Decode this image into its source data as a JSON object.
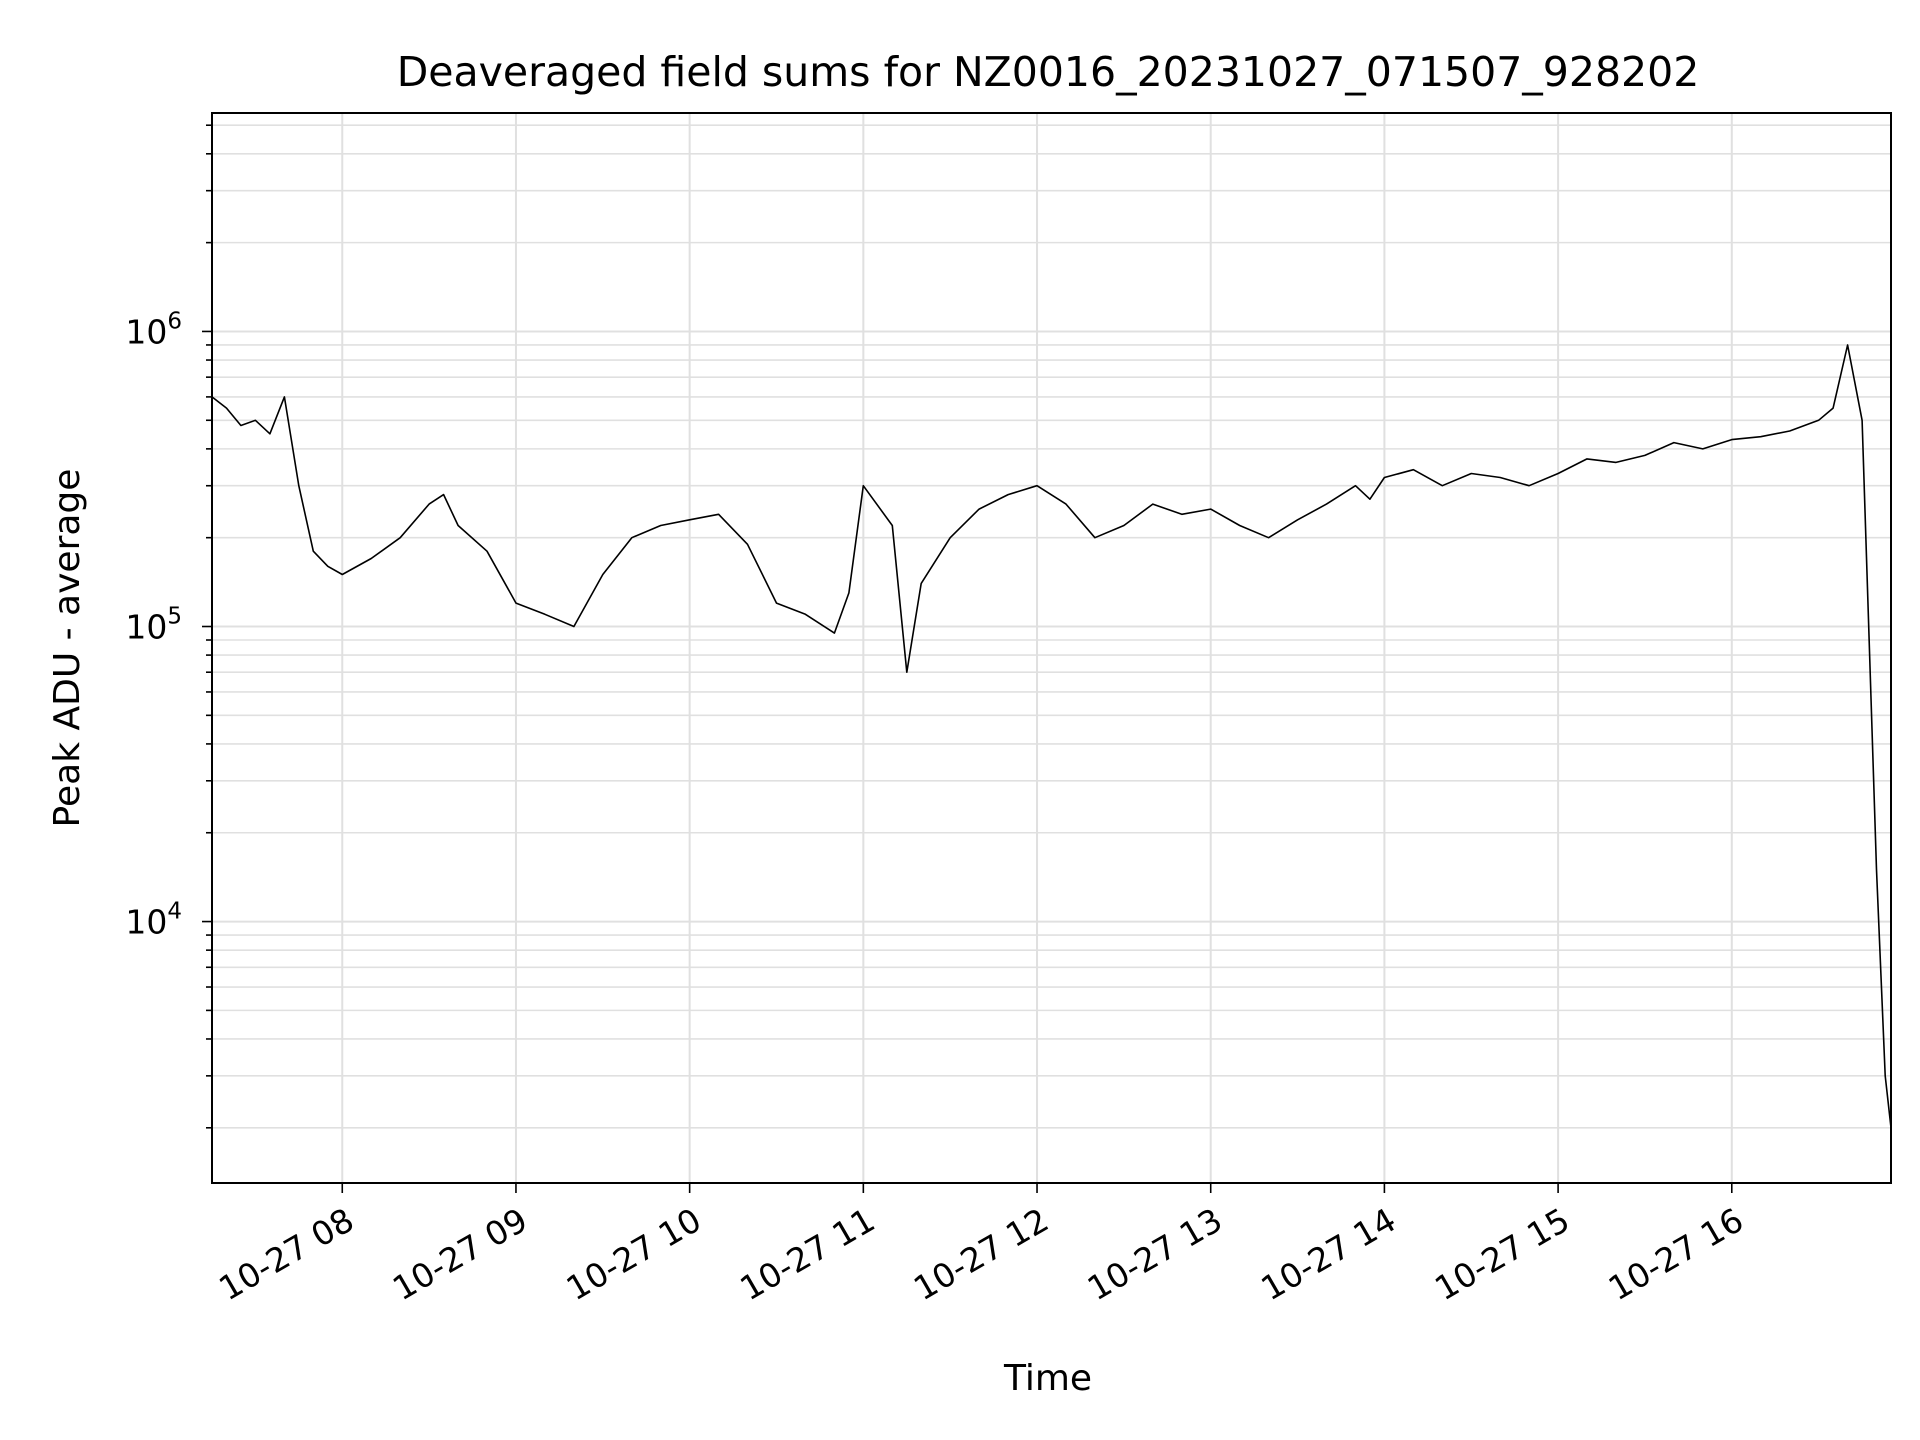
{
  "chart_data": {
    "type": "line",
    "title": "Deaveraged field sums for NZ0016_20231027_071507_928202",
    "xlabel": "Time",
    "ylabel": "Peak ADU - average",
    "y_scale": "log",
    "grid": true,
    "legend": "none",
    "line_color": "#000000",
    "grid_color": "#e0e0e0",
    "xlim": [
      "2023-10-27T07:15",
      "2023-10-27T16:55"
    ],
    "ylim": [
      1300,
      5500000
    ],
    "x_ticks": [
      {
        "t": "2023-10-27T08:00",
        "label": "10-27 08"
      },
      {
        "t": "2023-10-27T09:00",
        "label": "10-27 09"
      },
      {
        "t": "2023-10-27T10:00",
        "label": "10-27 10"
      },
      {
        "t": "2023-10-27T11:00",
        "label": "10-27 11"
      },
      {
        "t": "2023-10-27T12:00",
        "label": "10-27 12"
      },
      {
        "t": "2023-10-27T13:00",
        "label": "10-27 13"
      },
      {
        "t": "2023-10-27T14:00",
        "label": "10-27 14"
      },
      {
        "t": "2023-10-27T15:00",
        "label": "10-27 15"
      },
      {
        "t": "2023-10-27T16:00",
        "label": "10-27 16"
      }
    ],
    "y_ticks": [
      {
        "value": 10000,
        "label": "10",
        "exp": "4"
      },
      {
        "value": 100000,
        "label": "10",
        "exp": "5"
      },
      {
        "value": 1000000,
        "label": "10",
        "exp": "6"
      }
    ],
    "series": [
      {
        "x": [
          "2023-10-27T07:15",
          "2023-10-27T07:20",
          "2023-10-27T07:25",
          "2023-10-27T07:30",
          "2023-10-27T07:35",
          "2023-10-27T07:40",
          "2023-10-27T07:45",
          "2023-10-27T07:50",
          "2023-10-27T07:55",
          "2023-10-27T08:00",
          "2023-10-27T08:10",
          "2023-10-27T08:20",
          "2023-10-27T08:30",
          "2023-10-27T08:35",
          "2023-10-27T08:40",
          "2023-10-27T08:50",
          "2023-10-27T09:00",
          "2023-10-27T09:10",
          "2023-10-27T09:20",
          "2023-10-27T09:30",
          "2023-10-27T09:40",
          "2023-10-27T09:50",
          "2023-10-27T10:00",
          "2023-10-27T10:10",
          "2023-10-27T10:20",
          "2023-10-27T10:30",
          "2023-10-27T10:40",
          "2023-10-27T10:50",
          "2023-10-27T10:55",
          "2023-10-27T11:00",
          "2023-10-27T11:10",
          "2023-10-27T11:15",
          "2023-10-27T11:20",
          "2023-10-27T11:30",
          "2023-10-27T11:40",
          "2023-10-27T11:50",
          "2023-10-27T12:00",
          "2023-10-27T12:10",
          "2023-10-27T12:20",
          "2023-10-27T12:30",
          "2023-10-27T12:40",
          "2023-10-27T12:50",
          "2023-10-27T13:00",
          "2023-10-27T13:10",
          "2023-10-27T13:20",
          "2023-10-27T13:30",
          "2023-10-27T13:40",
          "2023-10-27T13:50",
          "2023-10-27T13:55",
          "2023-10-27T14:00",
          "2023-10-27T14:10",
          "2023-10-27T14:20",
          "2023-10-27T14:30",
          "2023-10-27T14:40",
          "2023-10-27T14:50",
          "2023-10-27T15:00",
          "2023-10-27T15:10",
          "2023-10-27T15:20",
          "2023-10-27T15:30",
          "2023-10-27T15:40",
          "2023-10-27T15:50",
          "2023-10-27T16:00",
          "2023-10-27T16:10",
          "2023-10-27T16:20",
          "2023-10-27T16:30",
          "2023-10-27T16:35",
          "2023-10-27T16:40",
          "2023-10-27T16:45",
          "2023-10-27T16:50",
          "2023-10-27T16:53",
          "2023-10-27T16:55"
        ],
        "y": [
          600000,
          550000,
          480000,
          500000,
          450000,
          600000,
          300000,
          180000,
          160000,
          150000,
          170000,
          200000,
          260000,
          280000,
          220000,
          180000,
          120000,
          110000,
          100000,
          150000,
          200000,
          220000,
          230000,
          240000,
          190000,
          120000,
          110000,
          95000,
          130000,
          300000,
          220000,
          70000,
          140000,
          200000,
          250000,
          280000,
          300000,
          260000,
          200000,
          220000,
          260000,
          240000,
          250000,
          220000,
          200000,
          230000,
          260000,
          300000,
          270000,
          320000,
          340000,
          300000,
          330000,
          320000,
          300000,
          330000,
          370000,
          360000,
          380000,
          420000,
          400000,
          430000,
          440000,
          460000,
          500000,
          550000,
          900000,
          500000,
          15000,
          3000,
          2000
        ]
      }
    ]
  }
}
